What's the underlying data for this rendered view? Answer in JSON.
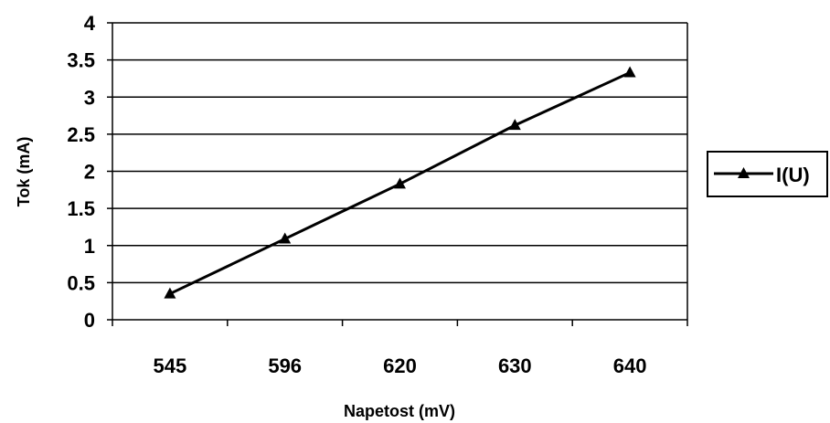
{
  "chart_data": {
    "type": "line",
    "categories": [
      "545",
      "596",
      "620",
      "630",
      "640"
    ],
    "series": [
      {
        "name": "I(U)",
        "values": [
          0.35,
          1.09,
          1.83,
          2.62,
          3.33
        ],
        "marker": "triangle",
        "color": "#000000"
      }
    ],
    "xlabel": "Napetost (mV)",
    "ylabel": "Tok (mA)",
    "ylim": [
      0,
      4
    ],
    "yticks": [
      "0",
      "0.5",
      "1",
      "1.5",
      "2",
      "2.5",
      "3",
      "3.5",
      "4"
    ],
    "grid": true,
    "legend": "right"
  }
}
